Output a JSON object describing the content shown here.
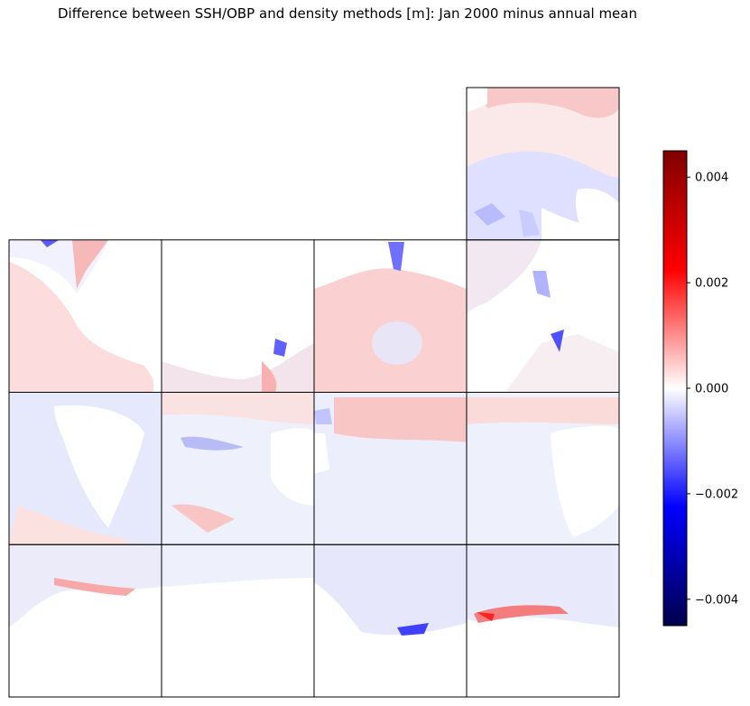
{
  "figure": {
    "title": "Difference between SSH/OBP and density methods [m]: Jan 2000 minus annual mean"
  },
  "colormap": {
    "name": "seismic",
    "stops": [
      "#00004c",
      "#0000ff",
      "#ffffff",
      "#ff0000",
      "#800000"
    ],
    "vmin": -0.0045,
    "vmax": 0.0045
  },
  "colorbar": {
    "orientation": "vertical",
    "placement": "right",
    "ticks": [
      {
        "value": 0.004,
        "label": "0.004"
      },
      {
        "value": 0.002,
        "label": "0.002"
      },
      {
        "value": 0.0,
        "label": "0.000"
      },
      {
        "value": -0.002,
        "label": "−0.002"
      },
      {
        "value": -0.004,
        "label": "−0.004"
      }
    ]
  },
  "tiles": {
    "layout": "LLC faces arranged on a 4x4 grid",
    "rows": 4,
    "cols": 4,
    "present": [
      [
        0,
        0,
        0,
        1
      ],
      [
        1,
        1,
        1,
        1
      ],
      [
        1,
        1,
        1,
        1
      ],
      [
        1,
        1,
        1,
        1
      ]
    ]
  }
}
